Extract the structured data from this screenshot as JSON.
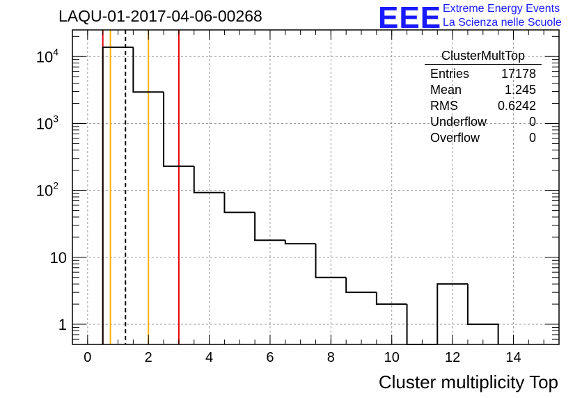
{
  "title": "LAQU-01-2017-04-06-00268",
  "logo": {
    "text": "EEE",
    "line1": "Extreme Energy Events",
    "line2": "La Scienza nelle Scuole",
    "color": "#1a1aff"
  },
  "stats": {
    "name": "ClusterMultTop",
    "rows": [
      {
        "label": "Entries",
        "value": "17178"
      },
      {
        "label": "Mean",
        "value": "1.245"
      },
      {
        "label": "RMS",
        "value": "0.6242"
      },
      {
        "label": "Underflow",
        "value": "0"
      },
      {
        "label": "Overflow",
        "value": "0"
      }
    ]
  },
  "chart_data": {
    "type": "histogram",
    "title": "LAQU-01-2017-04-06-00268",
    "xlabel": "Cluster multiplicity Top",
    "ylabel": "",
    "xlim": [
      -0.5,
      15.5
    ],
    "ylim": [
      0.5,
      25000
    ],
    "yscale": "log",
    "grid": true,
    "x_ticks": [
      "0",
      "2",
      "4",
      "6",
      "8",
      "10",
      "12",
      "14"
    ],
    "y_ticks": [
      {
        "value": 1,
        "base": "1",
        "exp": ""
      },
      {
        "value": 10,
        "base": "10",
        "exp": ""
      },
      {
        "value": 100,
        "base": "10",
        "exp": "2"
      },
      {
        "value": 1000,
        "base": "10",
        "exp": "3"
      },
      {
        "value": 10000,
        "base": "10",
        "exp": "4"
      }
    ],
    "bin_edges": [
      0.5,
      1.5,
      2.5,
      3.5,
      4.5,
      5.5,
      6.5,
      7.5,
      8.5,
      9.5,
      10.5,
      11.5,
      12.5,
      13.5
    ],
    "bin_counts": [
      13800,
      2950,
      230,
      93,
      47,
      18,
      16,
      5,
      3,
      2,
      0,
      4,
      1
    ],
    "vertical_lines": [
      {
        "x": 0.5,
        "color": "#e8000b",
        "style": "solid"
      },
      {
        "x": 0.75,
        "color": "#ffb000",
        "style": "solid"
      },
      {
        "x": 1.245,
        "color": "#000000",
        "style": "dashed"
      },
      {
        "x": 2.0,
        "color": "#ffb000",
        "style": "solid"
      },
      {
        "x": 3.0,
        "color": "#e8000b",
        "style": "solid"
      }
    ]
  }
}
